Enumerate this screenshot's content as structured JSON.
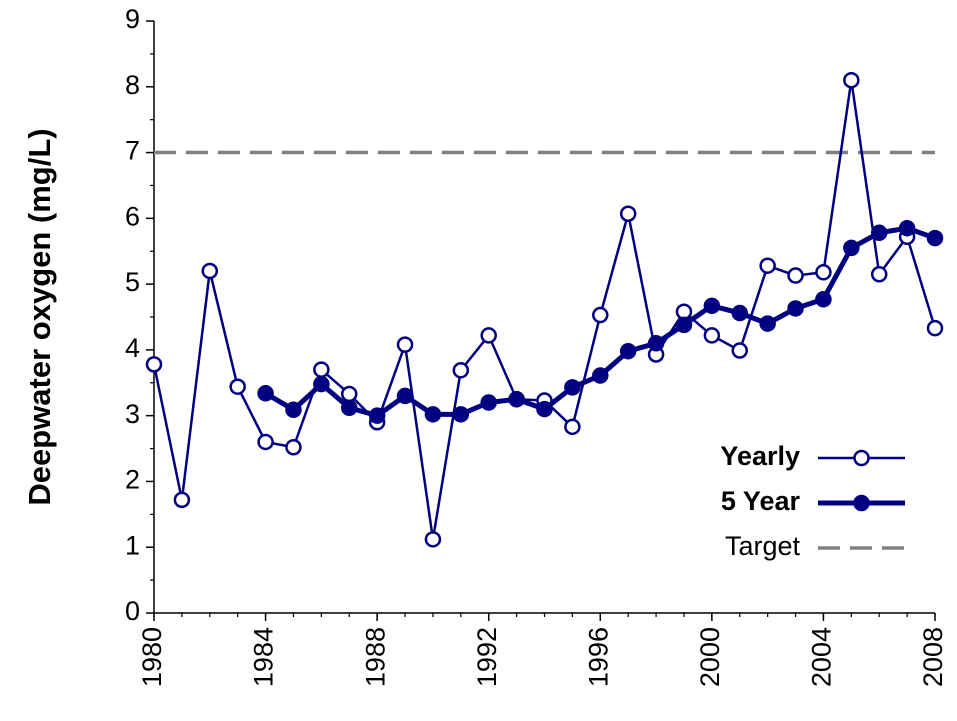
{
  "chart_data": {
    "type": "line",
    "ylabel": "Deepwater oxygen (mg/L)",
    "x": [
      1980,
      1981,
      1982,
      1983,
      1984,
      1985,
      1986,
      1987,
      1988,
      1989,
      1990,
      1991,
      1992,
      1993,
      1994,
      1995,
      1996,
      1997,
      1998,
      1999,
      2000,
      2001,
      2002,
      2003,
      2004,
      2005,
      2006,
      2007,
      2008
    ],
    "series": [
      {
        "name": "Yearly",
        "color": "#000080",
        "marker": "open",
        "values": [
          3.78,
          1.72,
          5.2,
          3.44,
          2.6,
          2.52,
          3.7,
          3.33,
          2.9,
          4.08,
          1.12,
          3.69,
          4.22,
          3.25,
          3.23,
          2.83,
          4.53,
          6.07,
          3.93,
          4.58,
          4.22,
          3.99,
          5.28,
          5.13,
          5.18,
          8.1,
          5.15,
          5.72,
          4.33
        ]
      },
      {
        "name": "5 Year",
        "color": "#000080",
        "marker": "filled",
        "values": [
          null,
          null,
          null,
          null,
          3.34,
          3.09,
          3.48,
          3.12,
          3.0,
          3.3,
          3.02,
          3.02,
          3.2,
          3.25,
          3.1,
          3.43,
          3.61,
          3.98,
          4.1,
          4.38,
          4.67,
          4.56,
          4.4,
          4.63,
          4.77,
          5.55,
          5.78,
          5.85,
          5.7
        ]
      }
    ],
    "reference_lines": [
      {
        "name": "Target",
        "value": 7,
        "color": "#808080"
      }
    ],
    "xlim": [
      1980,
      2008
    ],
    "xticks": [
      1980,
      1984,
      1988,
      1992,
      1996,
      2000,
      2004,
      2008
    ],
    "ylim": [
      0,
      9
    ],
    "yticks": [
      0,
      1,
      2,
      3,
      4,
      5,
      6,
      7,
      8,
      9
    ],
    "yminorticks": [
      0.5,
      1.5,
      2.5,
      3.5,
      4.5,
      5.5,
      6.5,
      7.5,
      8.5
    ],
    "legend": "lower right"
  }
}
